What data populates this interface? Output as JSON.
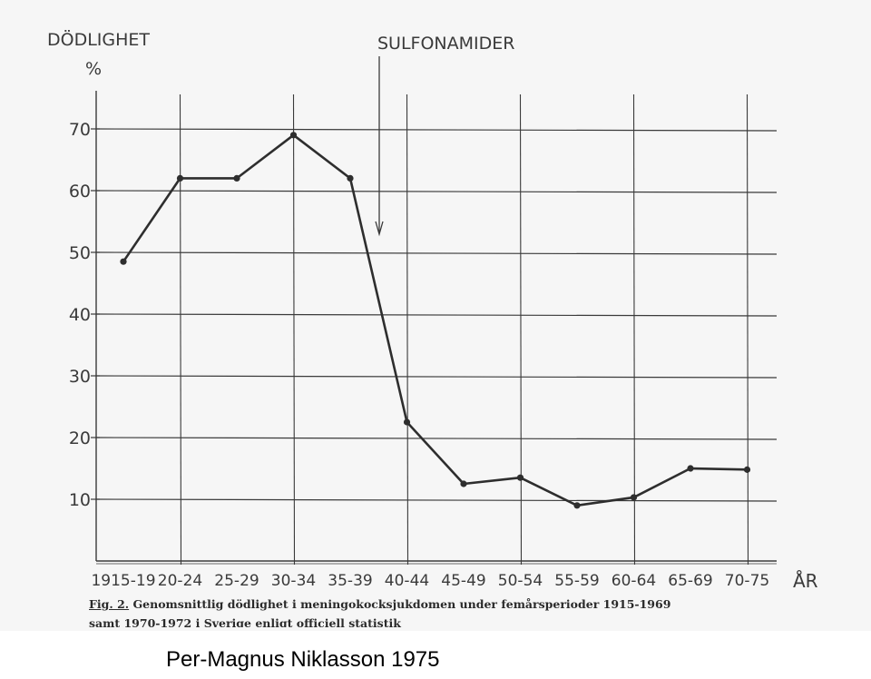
{
  "chart_data": {
    "type": "line",
    "ylabel": "DÖDLIGHET",
    "yunit": "%",
    "xlabel": "ÅR",
    "ylim": [
      0,
      70
    ],
    "yticks": [
      10,
      20,
      30,
      40,
      50,
      60,
      70
    ],
    "categories": [
      "1915-19",
      "20-24",
      "25-29",
      "30-34",
      "35-39",
      "40-44",
      "45-49",
      "50-54",
      "55-59",
      "60-64",
      "65-69",
      "70-75"
    ],
    "values": [
      48.5,
      62,
      62,
      69,
      62,
      22.5,
      12.5,
      13.5,
      9,
      10.3,
      15,
      14.8
    ],
    "annotation": "SULFONAMIDER",
    "annotation_x": "between 35-39 and 40-44",
    "grid": true,
    "colors": {
      "line": "#2e2e2e",
      "grid": "#3a3a3a",
      "text": "#3a3a3a"
    }
  },
  "caption": {
    "fig_label": "Fig. 2.",
    "line1": "Genomsnittlig dödlighet i meningokocksjukdomen under femårsperioder 1915-1969",
    "line2": "samt 1970-1972 i Sverige enligt officiell statistik"
  },
  "credit": "Per-Magnus Niklasson 1975"
}
